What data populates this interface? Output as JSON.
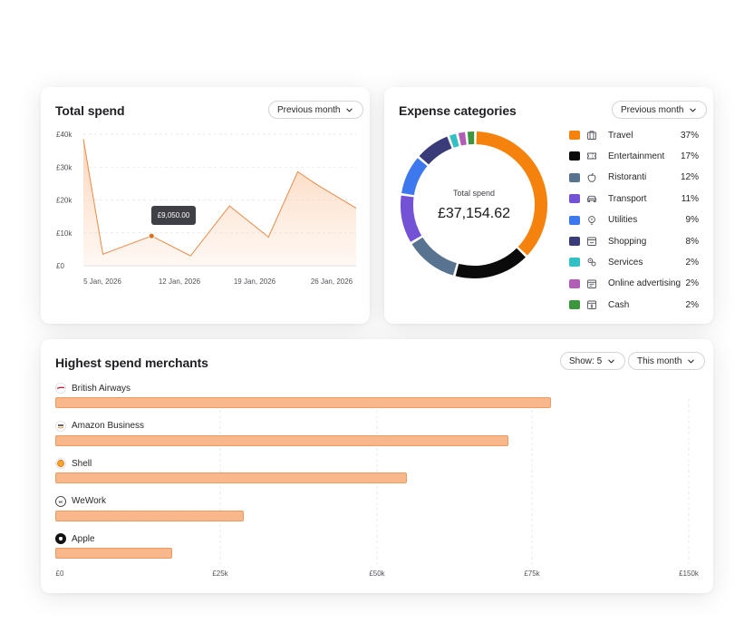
{
  "colors": {
    "accent": "#f28a2e",
    "bar_fill": "#f8b88b",
    "tooltip_bg": "#3f3f46"
  },
  "total_spend": {
    "title": "Total spend",
    "period_label": "Previous month",
    "tooltip": "£9,050.00",
    "y_ticks": [
      "£40k",
      "£30k",
      "£20k",
      "£10k",
      "£0"
    ],
    "x_ticks": [
      "5 Jan, 2026",
      "12 Jan, 2026",
      "19 Jan, 2026",
      "26 Jan, 2026"
    ]
  },
  "expense_categories": {
    "title": "Expense categories",
    "period_label": "Previous month",
    "center_label": "Total spend",
    "center_value": "£37,154.62",
    "items": [
      {
        "label": "Travel",
        "pct": "37%",
        "value": 37,
        "color": "#f5820d",
        "icon": "suitcase-icon"
      },
      {
        "label": "Entertainment",
        "pct": "17%",
        "value": 17,
        "color": "#0b0b0c",
        "icon": "ticket-icon"
      },
      {
        "label": "Ristoranti",
        "pct": "12%",
        "value": 12,
        "color": "#57738f",
        "icon": "apple-icon"
      },
      {
        "label": "Transport",
        "pct": "11%",
        "value": 11,
        "color": "#7352d6",
        "icon": "car-icon"
      },
      {
        "label": "Utilities",
        "pct": "9%",
        "value": 9,
        "color": "#3e78ef",
        "icon": "lightbulb-icon"
      },
      {
        "label": "Shopping",
        "pct": "8%",
        "value": 8,
        "color": "#3a3c7a",
        "icon": "shop-icon"
      },
      {
        "label": "Services",
        "pct": "2%",
        "value": 2,
        "color": "#33c0c4",
        "icon": "gears-icon"
      },
      {
        "label": "Online advertising",
        "pct": "2%",
        "value": 2,
        "color": "#b15fb6",
        "icon": "browser-icon"
      },
      {
        "label": "Cash",
        "pct": "2%",
        "value": 2,
        "color": "#3d963d",
        "icon": "cash-icon"
      }
    ]
  },
  "merchants": {
    "title": "Highest spend merchants",
    "show_label": "Show: 5",
    "period_label": "This month",
    "x_ticks": [
      "£0",
      "£25k",
      "£50k",
      "£75k",
      "£150k"
    ],
    "items": [
      {
        "name": "British Airways",
        "value": 78000,
        "logo": "british-airways-logo"
      },
      {
        "name": "Amazon Business",
        "value": 71300,
        "logo": "amazon-logo"
      },
      {
        "name": "Shell",
        "value": 55300,
        "logo": "shell-logo"
      },
      {
        "name": "WeWork",
        "value": 29600,
        "logo": "wework-logo"
      },
      {
        "name": "Apple",
        "value": 18400,
        "logo": "apple-logo"
      }
    ]
  },
  "chart_data": [
    {
      "type": "area",
      "title": "Total spend",
      "x": [
        "3 Jan, 2026",
        "5 Jan, 2026",
        "10 Jan, 2026",
        "14 Jan, 2026",
        "18 Jan, 2026",
        "22 Jan, 2026",
        "25 Jan, 2026",
        "27 Jan, 2026",
        "31 Jan, 2026"
      ],
      "y": [
        38500,
        3500,
        9050,
        3000,
        18200,
        8700,
        28600,
        24600,
        17500
      ],
      "highlight": {
        "x": "10 Jan, 2026",
        "y": 9050
      },
      "ylim": [
        0,
        40000
      ],
      "y_ticks": [
        "£0",
        "£10k",
        "£20k",
        "£30k",
        "£40k"
      ],
      "x_ticks": [
        "5 Jan, 2026",
        "12 Jan, 2026",
        "19 Jan, 2026",
        "26 Jan, 2026"
      ],
      "grid": true
    },
    {
      "type": "pie",
      "title": "Expense categories",
      "categories": [
        "Travel",
        "Entertainment",
        "Ristoranti",
        "Transport",
        "Utilities",
        "Shopping",
        "Services",
        "Online advertising",
        "Cash"
      ],
      "values": [
        37,
        17,
        12,
        11,
        9,
        8,
        2,
        2,
        2
      ],
      "legend": "right"
    },
    {
      "type": "bar",
      "orientation": "horizontal",
      "title": "Highest spend merchants",
      "categories": [
        "British Airways",
        "Amazon Business",
        "Shell",
        "WeWork",
        "Apple"
      ],
      "values": [
        78000,
        71300,
        55300,
        29600,
        18400
      ],
      "x_ticks": [
        "£0",
        "£25k",
        "£50k",
        "£75k",
        "£150k"
      ],
      "grid": true
    }
  ]
}
